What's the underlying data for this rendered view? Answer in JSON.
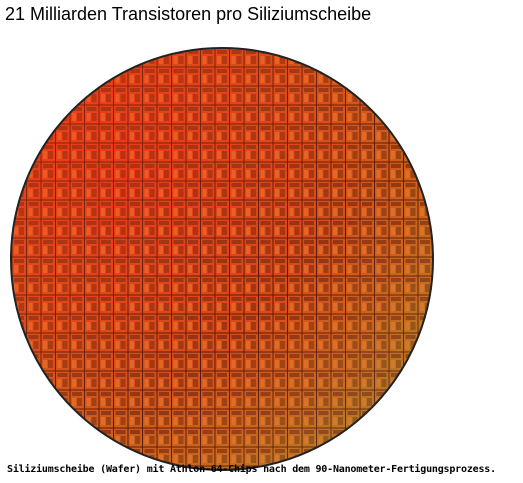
{
  "header": {
    "title": "21 Milliarden Transistoren pro Siliziumscheibe"
  },
  "caption": "Siliziumscheibe (Wafer) mit Athlon-64-Chips nach dem 90-Nanometer-Fertigungsprozess."
}
